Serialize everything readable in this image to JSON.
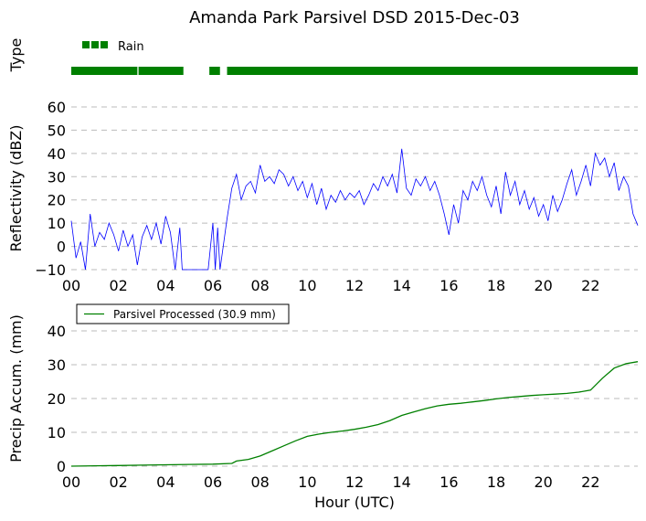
{
  "title": "Amanda Park Parsivel DSD 2015-Dec-03",
  "chart_data": [
    {
      "type": "timeline",
      "ylabel": "Type",
      "legend": {
        "label": "Rain",
        "color": "#008000",
        "placement": "top-left"
      },
      "segments": [
        [
          0.0,
          2.8
        ],
        [
          2.85,
          4.75
        ],
        [
          5.85,
          6.3
        ],
        [
          6.6,
          24.0
        ]
      ],
      "xlim": [
        0,
        24
      ]
    },
    {
      "type": "line",
      "ylabel": "Reflectivity (dBZ)",
      "ylim": [
        -10,
        60
      ],
      "yticks": [
        "60",
        "50",
        "40",
        "30",
        "20",
        "10",
        "0",
        "−10"
      ],
      "ytick_values": [
        60,
        50,
        40,
        30,
        20,
        10,
        0,
        -10
      ],
      "xlim": [
        0,
        24
      ],
      "xticks": [
        "00",
        "02",
        "04",
        "06",
        "08",
        "10",
        "12",
        "14",
        "16",
        "18",
        "20",
        "22"
      ],
      "grid": "y-dashed",
      "series": [
        {
          "color": "#0000ff",
          "x": [
            0.0,
            0.2,
            0.4,
            0.6,
            0.8,
            1.0,
            1.2,
            1.4,
            1.6,
            1.8,
            2.0,
            2.2,
            2.4,
            2.6,
            2.8,
            3.0,
            3.2,
            3.4,
            3.6,
            3.8,
            4.0,
            4.2,
            4.4,
            4.6,
            4.7,
            5.0,
            5.5,
            5.8,
            6.0,
            6.1,
            6.2,
            6.3,
            6.6,
            6.8,
            7.0,
            7.2,
            7.4,
            7.6,
            7.8,
            8.0,
            8.2,
            8.4,
            8.6,
            8.8,
            9.0,
            9.2,
            9.4,
            9.6,
            9.8,
            10.0,
            10.2,
            10.4,
            10.6,
            10.8,
            11.0,
            11.2,
            11.4,
            11.6,
            11.8,
            12.0,
            12.2,
            12.4,
            12.6,
            12.8,
            13.0,
            13.2,
            13.4,
            13.6,
            13.8,
            14.0,
            14.2,
            14.4,
            14.6,
            14.8,
            15.0,
            15.2,
            15.4,
            15.6,
            15.8,
            16.0,
            16.2,
            16.4,
            16.6,
            16.8,
            17.0,
            17.2,
            17.4,
            17.6,
            17.8,
            18.0,
            18.2,
            18.4,
            18.6,
            18.8,
            19.0,
            19.2,
            19.4,
            19.6,
            19.8,
            20.0,
            20.2,
            20.4,
            20.6,
            20.8,
            21.0,
            21.2,
            21.4,
            21.6,
            21.8,
            22.0,
            22.2,
            22.4,
            22.6,
            22.8,
            23.0,
            23.2,
            23.4,
            23.6,
            23.8,
            24.0
          ],
          "y": [
            11,
            -5,
            2,
            -10,
            14,
            0,
            6,
            3,
            10,
            5,
            -2,
            7,
            0,
            5,
            -8,
            4,
            9,
            3,
            10,
            1,
            13,
            6,
            -10,
            8,
            -10,
            -10,
            -10,
            -10,
            10,
            -10,
            8,
            -10,
            12,
            25,
            31,
            20,
            26,
            28,
            23,
            35,
            28,
            30,
            27,
            33,
            31,
            26,
            30,
            24,
            28,
            21,
            27,
            18,
            25,
            16,
            22,
            19,
            24,
            20,
            23,
            21,
            24,
            18,
            22,
            27,
            24,
            30,
            26,
            31,
            23,
            42,
            25,
            22,
            29,
            26,
            30,
            24,
            28,
            22,
            14,
            5,
            18,
            10,
            24,
            20,
            28,
            24,
            30,
            22,
            17,
            26,
            14,
            32,
            22,
            28,
            18,
            24,
            16,
            21,
            13,
            18,
            11,
            22,
            15,
            20,
            27,
            33,
            22,
            28,
            35,
            26,
            40,
            35,
            38,
            30,
            36,
            24,
            30,
            26,
            14,
            9
          ]
        }
      ]
    },
    {
      "type": "line",
      "ylabel": "Precip Accum. (mm)",
      "xlabel": "Hour (UTC)",
      "ylim": [
        0,
        45
      ],
      "yticks": [
        "40",
        "30",
        "20",
        "10",
        "0"
      ],
      "ytick_values": [
        40,
        30,
        20,
        10,
        0
      ],
      "xlim": [
        0,
        24
      ],
      "xticks": [
        "00",
        "02",
        "04",
        "06",
        "08",
        "10",
        "12",
        "14",
        "16",
        "18",
        "20",
        "22"
      ],
      "grid": "y-dashed",
      "legend": {
        "placement": "upper-left"
      },
      "series": [
        {
          "name": "Parsivel Processed (30.9 mm)",
          "color": "#008000",
          "x": [
            0,
            1,
            2,
            3,
            4,
            5,
            6,
            6.8,
            7.0,
            7.5,
            8.0,
            8.5,
            9.0,
            9.5,
            10.0,
            10.5,
            11.0,
            11.5,
            12.0,
            12.5,
            13.0,
            13.5,
            14.0,
            14.5,
            15.0,
            15.5,
            16.0,
            16.5,
            17.0,
            17.5,
            18.0,
            18.5,
            19.0,
            19.5,
            20.0,
            20.5,
            21.0,
            21.5,
            22.0,
            22.5,
            23.0,
            23.5,
            24.0
          ],
          "y": [
            0.0,
            0.1,
            0.2,
            0.3,
            0.4,
            0.5,
            0.6,
            0.8,
            1.5,
            2.0,
            3.0,
            4.5,
            6.0,
            7.5,
            8.8,
            9.5,
            10.0,
            10.4,
            10.9,
            11.5,
            12.3,
            13.5,
            15.0,
            16.0,
            17.0,
            17.8,
            18.3,
            18.6,
            19.0,
            19.4,
            19.9,
            20.3,
            20.6,
            20.9,
            21.1,
            21.3,
            21.5,
            21.9,
            22.5,
            26.0,
            29.0,
            30.3,
            30.9
          ]
        }
      ]
    }
  ]
}
